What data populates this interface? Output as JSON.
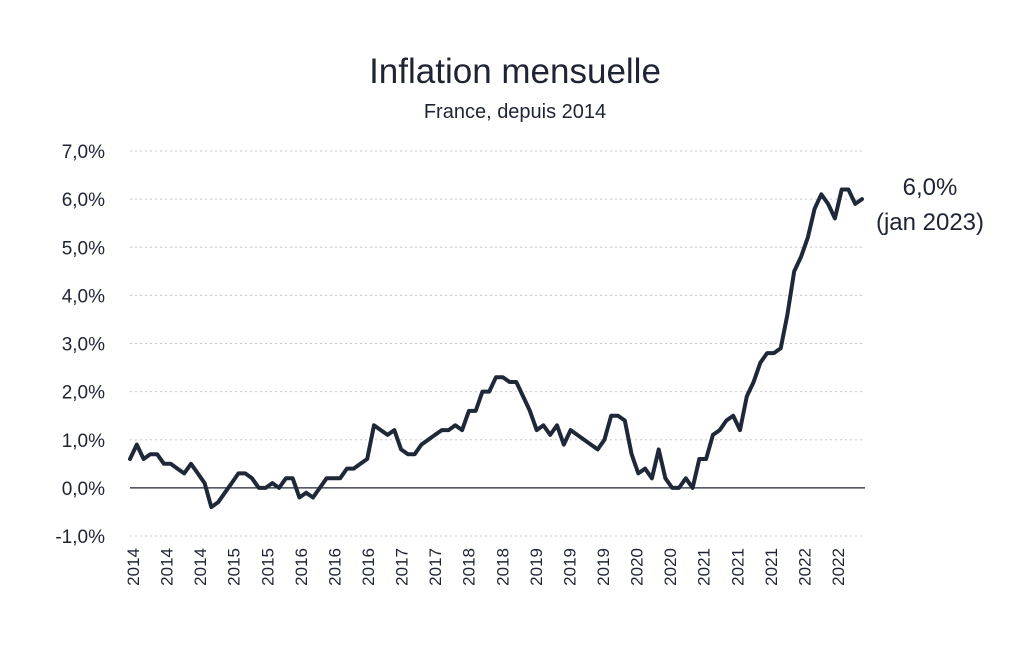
{
  "chart_data": {
    "type": "line",
    "title": "Inflation mensuelle",
    "subtitle": "France, depuis 2014",
    "ylim": [
      -1.0,
      7.0
    ],
    "y_ticks": [
      -1.0,
      0.0,
      1.0,
      2.0,
      3.0,
      4.0,
      5.0,
      6.0,
      7.0
    ],
    "y_tick_labels": [
      "-1,0%",
      "0,0%",
      "1,0%",
      "2,0%",
      "3,0%",
      "4,0%",
      "5,0%",
      "6,0%",
      "7,0%"
    ],
    "x_tick_labels": [
      "2014",
      "2014",
      "2014",
      "2015",
      "2015",
      "2016",
      "2016",
      "2016",
      "2017",
      "2017",
      "2018",
      "2018",
      "2019",
      "2019",
      "2019",
      "2020",
      "2020",
      "2021",
      "2021",
      "2021",
      "2022",
      "2022"
    ],
    "grid": "horizontal-dotted",
    "line_color": "#1e2838",
    "series": [
      {
        "values": [
          0.6,
          0.9,
          0.6,
          0.7,
          0.7,
          0.5,
          0.5,
          0.4,
          0.3,
          0.5,
          0.3,
          0.1,
          -0.4,
          -0.3,
          -0.1,
          0.1,
          0.3,
          0.3,
          0.2,
          0.0,
          0.0,
          0.1,
          0.0,
          0.2,
          0.2,
          -0.2,
          -0.1,
          -0.2,
          0.0,
          0.2,
          0.2,
          0.2,
          0.4,
          0.4,
          0.5,
          0.6,
          1.3,
          1.2,
          1.1,
          1.2,
          0.8,
          0.7,
          0.7,
          0.9,
          1.0,
          1.1,
          1.2,
          1.2,
          1.3,
          1.2,
          1.6,
          1.6,
          2.0,
          2.0,
          2.3,
          2.3,
          2.2,
          2.2,
          1.9,
          1.6,
          1.2,
          1.3,
          1.1,
          1.3,
          0.9,
          1.2,
          1.1,
          1.0,
          0.9,
          0.8,
          1.0,
          1.5,
          1.5,
          1.4,
          0.7,
          0.3,
          0.4,
          0.2,
          0.8,
          0.2,
          0.0,
          0.0,
          0.2,
          0.0,
          0.6,
          0.6,
          1.1,
          1.2,
          1.4,
          1.5,
          1.2,
          1.9,
          2.2,
          2.6,
          2.8,
          2.8,
          2.9,
          3.6,
          4.5,
          4.8,
          5.2,
          5.8,
          6.1,
          5.9,
          5.6,
          6.2,
          6.2,
          5.9,
          6.0
        ]
      }
    ],
    "annotation": {
      "value": "6,0%",
      "period": "(jan 2023)"
    }
  }
}
